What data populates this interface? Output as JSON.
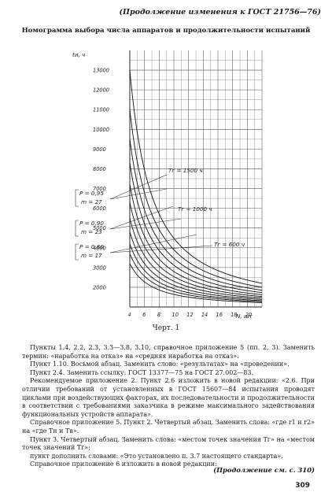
{
  "header": {
    "continuation": "(Продолжение изменения к ГОСТ 21756—76)",
    "title": "Номограмма выбора числа аппаратов и продолжительности испытаний"
  },
  "chart_data": {
    "type": "line",
    "ylabel": "tи, ч",
    "xlabel": "N, шт",
    "y_ticks": [
      "13000",
      "12000",
      "11000",
      "10000",
      "9000",
      "8000",
      "7000",
      "6000",
      "5000",
      "4000",
      "3000",
      "2000"
    ],
    "x_ticks": [
      "4",
      "6",
      "8",
      "10",
      "12",
      "14",
      "16",
      "18",
      "20"
    ],
    "ylim": [
      1000,
      14000
    ],
    "xlim": [
      4,
      22
    ],
    "groups": [
      {
        "P": "P = 0,95",
        "m": "m = 27"
      },
      {
        "P": "P = 0,90",
        "m": "m = 23"
      },
      {
        "P": "P = 0,80",
        "m": "m = 17"
      }
    ],
    "T_labels": [
      "Tг = 1500 ч",
      "Tг = 1000 ч",
      "Tг = 600 ч"
    ],
    "series_k": [
      13000,
      11000,
      9500,
      8300,
      7200,
      6300,
      5500,
      4800,
      4200,
      3700,
      3200
    ]
  },
  "figure": {
    "caption": "Черт. 1"
  },
  "paragraphs": [
    "Пункты 1.4, 2.2, 2.3, 3.3—3.8, 3.10, справочное приложение 5 (пп. 2, 3). Заменить термин: «наработка на отказ» на «средняя наработка на отказ».",
    "Пункт 1.10. Восьмой абзац. Заменить слово: «результатах» на «проведении».",
    "Пункт 2.4. Заменить ссылку: ГОСТ 13377—75 на ГОСТ 27.002—83.",
    "Рекомендуемое приложение 2. Пункт 2.6 изложить в новой редакции: «2.6. При отличии требований от установленных в ГОСТ 15607—84 испытания проводят циклами при воздействующих факторах, их последовательности и продолжительности в соответствии с требованиями заказчика в режиме максимального задействования функциональных устройств аппарата».",
    "Справочное приложение 5. Пункт 2. Четвертый абзац. Заменить слова: «где r1 и r2» на «где Tн и Tв».",
    "Пункт 3. Четвертый абзац. Заменить слова: «местом точек значения Tг» на «местом точек значений Tг»;",
    "пункт дополнить словами: «Это установлено п. 3.7 настоящего стандарта».",
    "Справочное приложение 6 изложить в новой редакции:"
  ],
  "footer": {
    "continuation": "(Продолжение см. с. 310)",
    "page_number": "309"
  }
}
